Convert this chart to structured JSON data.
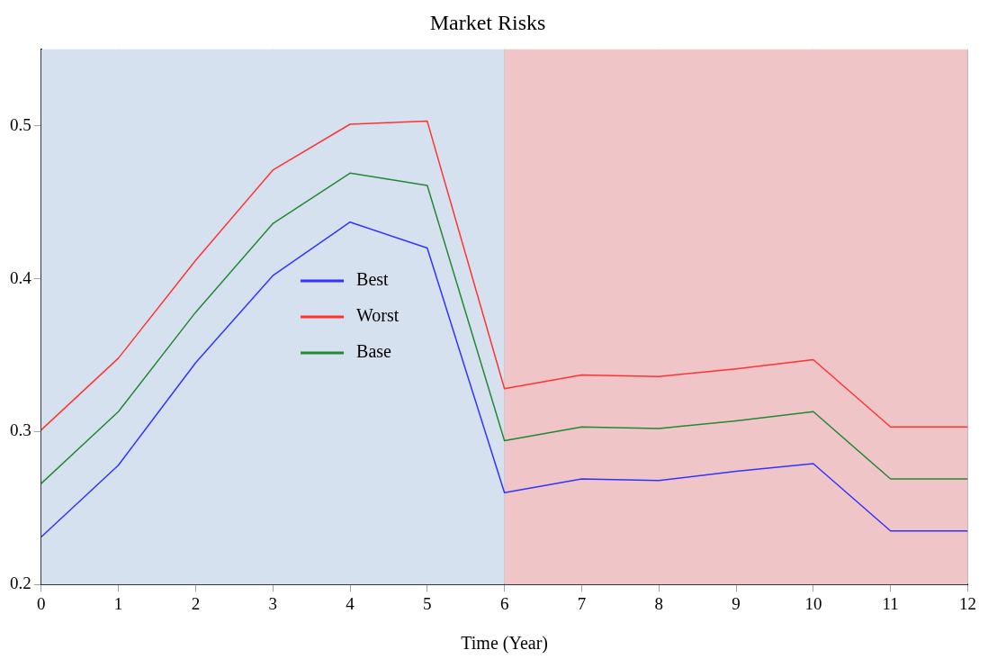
{
  "chart_data": {
    "type": "line",
    "title": "Market Risks",
    "xlabel": "Time (Year)",
    "x": [
      0,
      1,
      2,
      3,
      4,
      5,
      6,
      7,
      8,
      9,
      10,
      11,
      12
    ],
    "series": [
      {
        "name": "Best",
        "color": "#3333ff",
        "values": [
          0.231,
          0.278,
          0.345,
          0.402,
          0.437,
          0.42,
          0.26,
          0.269,
          0.268,
          0.274,
          0.279,
          0.235,
          0.235
        ]
      },
      {
        "name": "Worst",
        "color": "#ff3333",
        "values": [
          0.301,
          0.348,
          0.412,
          0.471,
          0.501,
          0.503,
          0.328,
          0.337,
          0.336,
          0.341,
          0.347,
          0.303,
          0.303
        ]
      },
      {
        "name": "Base",
        "color": "#228833",
        "values": [
          0.266,
          0.313,
          0.378,
          0.436,
          0.469,
          0.461,
          0.294,
          0.303,
          0.302,
          0.307,
          0.313,
          0.269,
          0.269
        ]
      }
    ],
    "xlim": [
      0,
      12
    ],
    "xticks": [
      0,
      1,
      2,
      3,
      4,
      5,
      6,
      7,
      8,
      9,
      10,
      11,
      12
    ],
    "ylim": [
      0.2,
      0.55
    ],
    "yticks": [
      0.2,
      0.3,
      0.4,
      0.5
    ],
    "bands": [
      {
        "axis": "x",
        "from": 0,
        "to": 6,
        "color": "#d6e1ef"
      },
      {
        "axis": "x",
        "from": 6,
        "to": 12,
        "color": "#efc5c7"
      }
    ],
    "grid": true,
    "legend": "left",
    "marker": "none",
    "line_style": "solid"
  }
}
